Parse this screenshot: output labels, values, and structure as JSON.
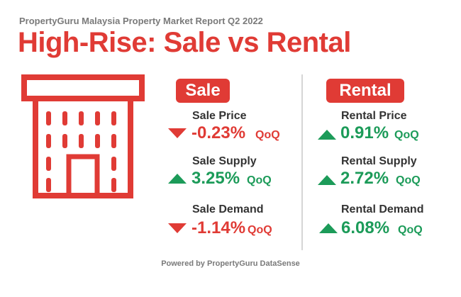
{
  "header": {
    "subtitle": "PropertyGuru Malaysia Property Market Report Q2 2022",
    "title": "High-Rise: Sale vs Rental"
  },
  "colors": {
    "brand_red": "#e03b35",
    "up_green": "#1c9b59",
    "down_red": "#e03b35"
  },
  "sale": {
    "badge": "Sale",
    "metrics": [
      {
        "label": "Sale Price",
        "value": "-0.23%",
        "unit": "QoQ",
        "direction": "down"
      },
      {
        "label": "Sale Supply",
        "value": "3.25%",
        "unit": "QoQ",
        "direction": "up"
      },
      {
        "label": "Sale Demand",
        "value": "-1.14%",
        "unit": "QoQ",
        "direction": "down"
      }
    ]
  },
  "rental": {
    "badge": "Rental",
    "metrics": [
      {
        "label": "Rental Price",
        "value": "0.91%",
        "unit": "QoQ",
        "direction": "up"
      },
      {
        "label": "Rental Supply",
        "value": "2.72%",
        "unit": "QoQ",
        "direction": "up"
      },
      {
        "label": "Rental Demand",
        "value": "6.08%",
        "unit": "QoQ",
        "direction": "up"
      }
    ]
  },
  "footer": {
    "text": "Powered by PropertyGuru DataSense"
  }
}
